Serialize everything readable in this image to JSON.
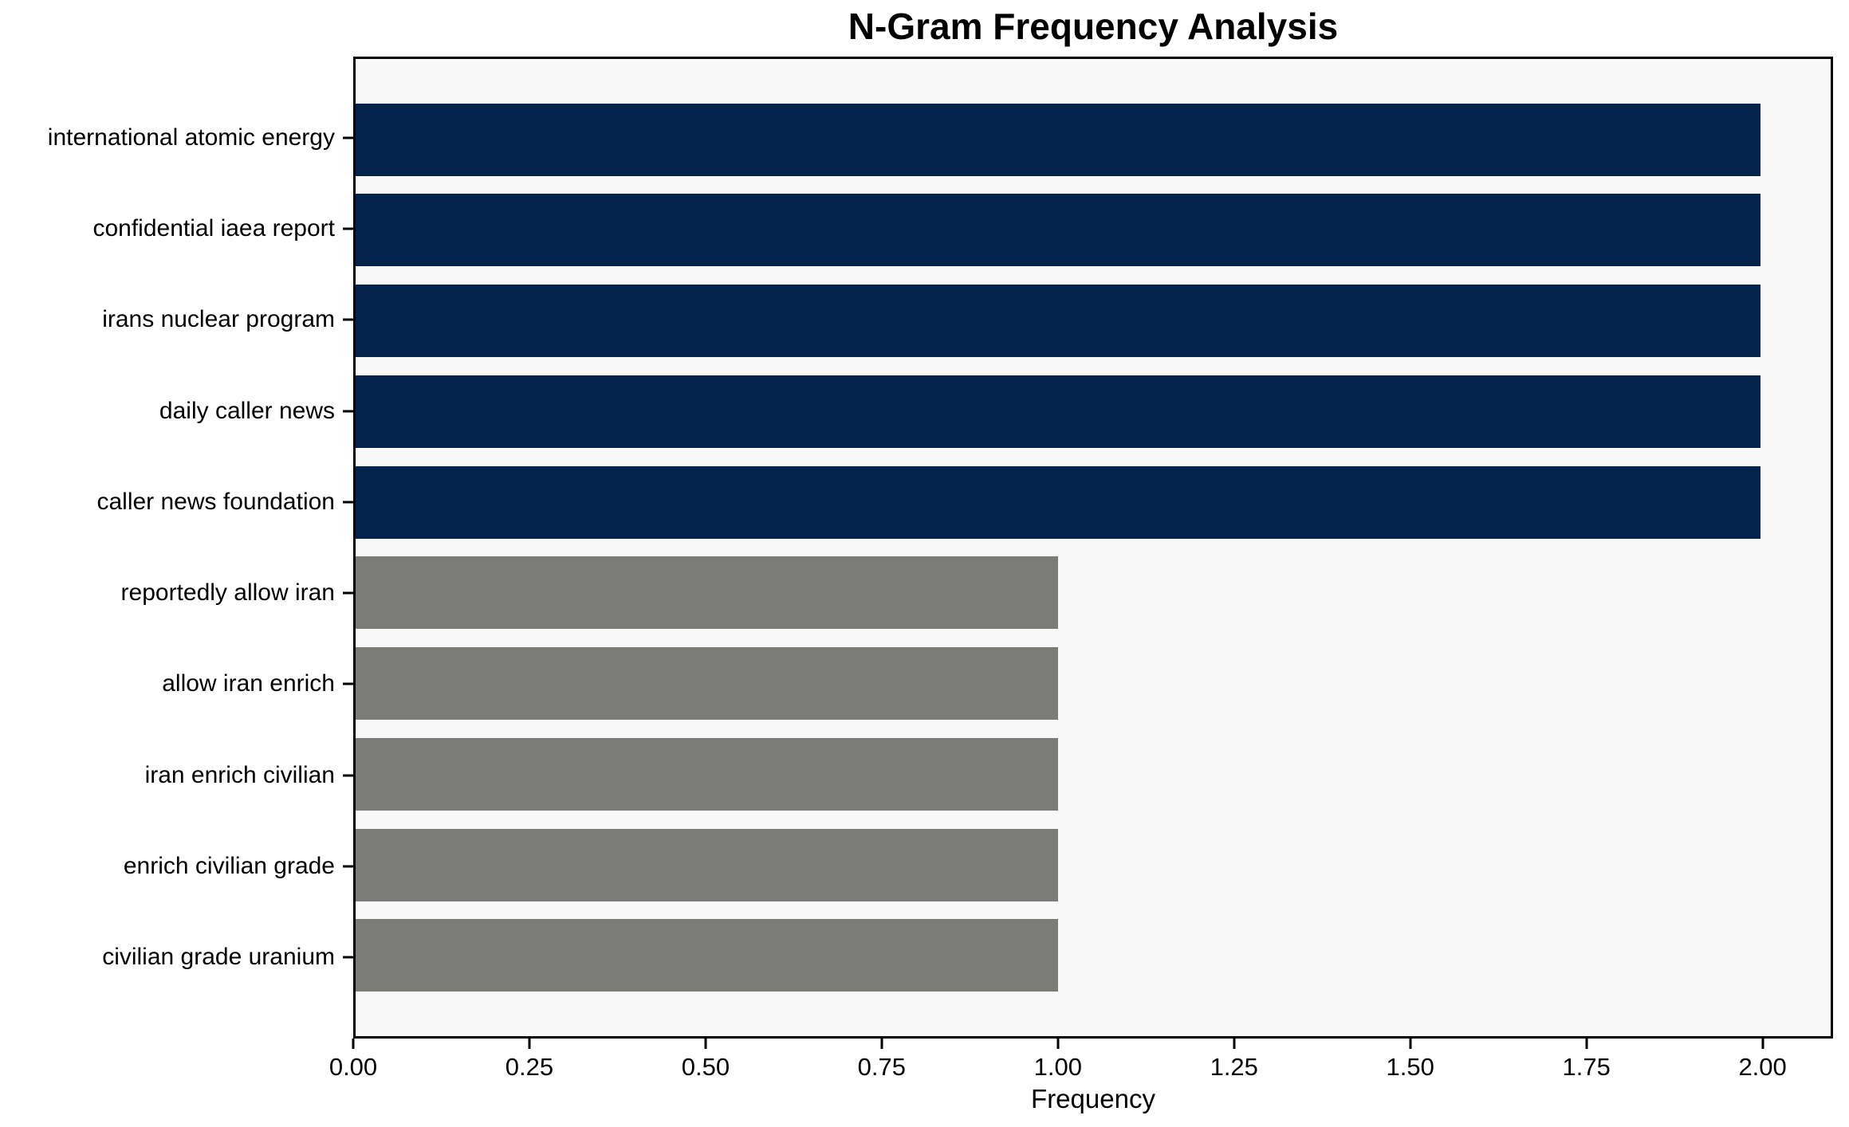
{
  "chart_data": {
    "type": "bar",
    "orientation": "horizontal",
    "title": "N-Gram Frequency Analysis",
    "xlabel": "Frequency",
    "ylabel": "",
    "categories": [
      "international atomic energy",
      "confidential iaea report",
      "irans nuclear program",
      "daily caller news",
      "caller news foundation",
      "reportedly allow iran",
      "allow iran enrich",
      "iran enrich civilian",
      "enrich civilian grade",
      "civilian grade uranium"
    ],
    "values": [
      2,
      2,
      2,
      2,
      2,
      1,
      1,
      1,
      1,
      1
    ],
    "bar_colors": [
      "#03224c",
      "#03224c",
      "#03224c",
      "#03224c",
      "#03224c",
      "#7b7b77",
      "#7b7b77",
      "#7b7b77",
      "#7b7b77",
      "#7b7b77"
    ],
    "xlim": [
      0,
      2.1
    ],
    "x_ticks": [
      0,
      0.25,
      0.5,
      0.75,
      1.0,
      1.25,
      1.5,
      1.75,
      2.0
    ],
    "x_tick_labels": [
      "0.00",
      "0.25",
      "0.50",
      "0.75",
      "1.00",
      "1.25",
      "1.50",
      "1.75",
      "2.00"
    ],
    "grid": false,
    "legend_position": "none",
    "colors": {
      "high_frequency_bar": "#03224c",
      "low_frequency_bar": "#7b7b77",
      "plot_background": "#f7f8f7",
      "figure_background": "#ffffff",
      "axis": "#000000",
      "text": "#000000"
    }
  }
}
